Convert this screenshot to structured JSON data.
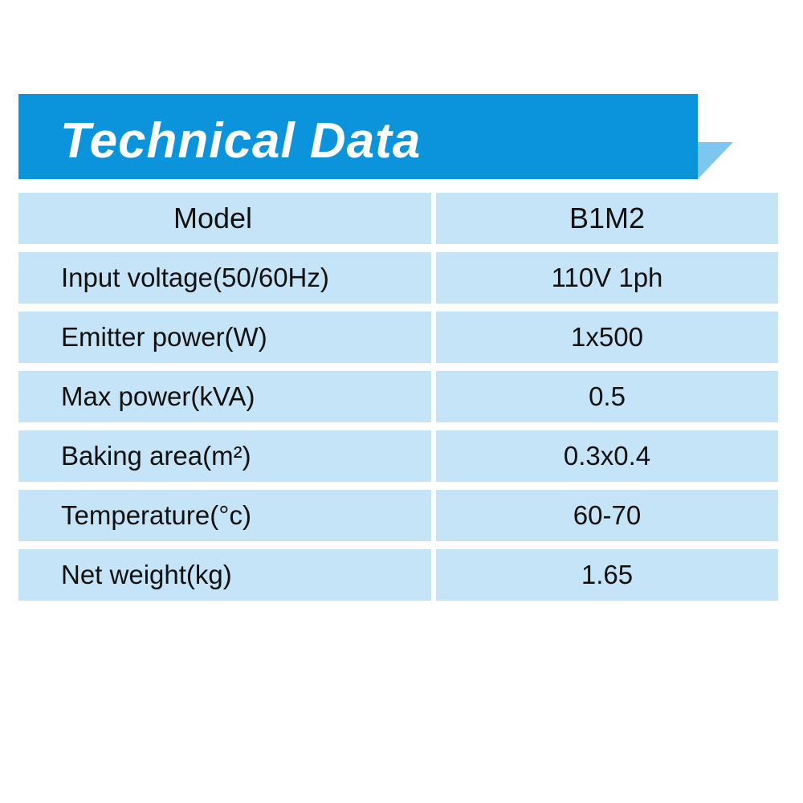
{
  "header": {
    "title": "Technical Data"
  },
  "table": {
    "header": [
      "Model",
      "B1M2"
    ],
    "rows": [
      [
        "Input voltage(50/60Hz)",
        "110V 1ph"
      ],
      [
        "Emitter power(W)",
        "1x500"
      ],
      [
        "Max power(kVA)",
        "0.5"
      ],
      [
        "Baking area(m²)",
        "0.3x0.4"
      ],
      [
        "Temperature(°c)",
        "60-70"
      ],
      [
        "Net weight(kg)",
        "1.65"
      ]
    ]
  }
}
